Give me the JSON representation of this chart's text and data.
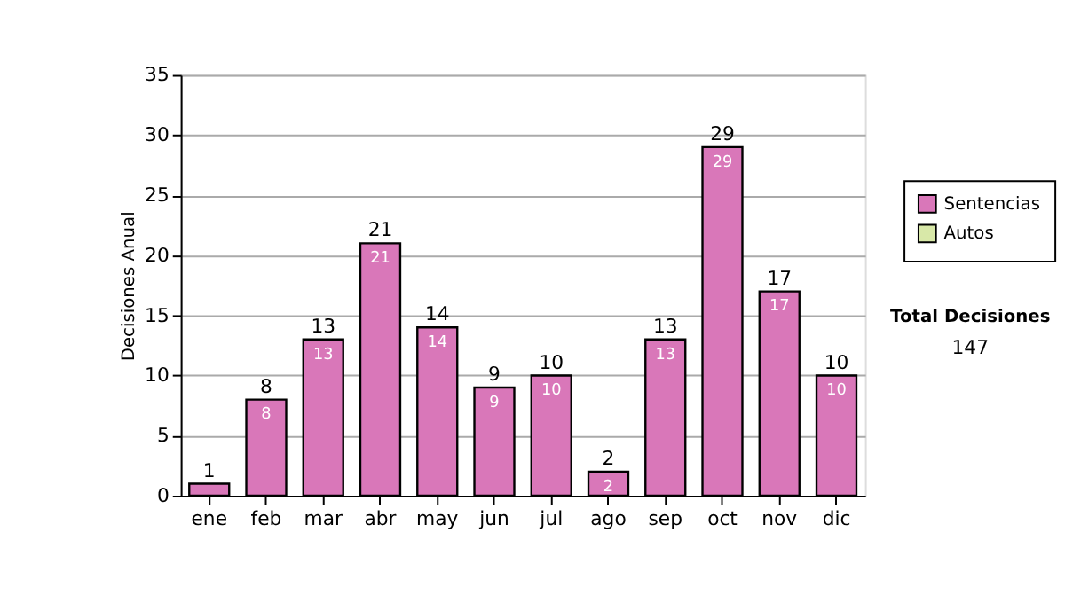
{
  "chart_data": {
    "type": "bar",
    "ylabel": "Decisiones Anual",
    "categories": [
      "ene",
      "feb",
      "mar",
      "abr",
      "may",
      "jun",
      "jul",
      "ago",
      "sep",
      "oct",
      "nov",
      "dic"
    ],
    "series": [
      {
        "name": "Sentencias",
        "color": "#d977b9",
        "values": [
          1,
          8,
          13,
          21,
          14,
          9,
          10,
          2,
          13,
          29,
          17,
          10
        ],
        "value_labels": [
          null,
          "8",
          "13",
          "21",
          "14",
          "9",
          "10",
          "2",
          "13",
          "29",
          "17",
          "10"
        ]
      },
      {
        "name": "Autos",
        "color": "#d8e8a8",
        "values": [
          null,
          null,
          null,
          null,
          null,
          null,
          null,
          null,
          null,
          null,
          null,
          null
        ]
      }
    ],
    "totals": [
      "1",
      "8",
      "13",
      "21",
      "14",
      "9",
      "10",
      "2",
      "13",
      "29",
      "17",
      "10"
    ],
    "ylim": [
      0,
      35
    ],
    "yticks": [
      0,
      5,
      10,
      15,
      20,
      25,
      30,
      35
    ],
    "grid": "y",
    "legend": "right",
    "annotations": [
      "Total Decisiones",
      "147"
    ]
  }
}
